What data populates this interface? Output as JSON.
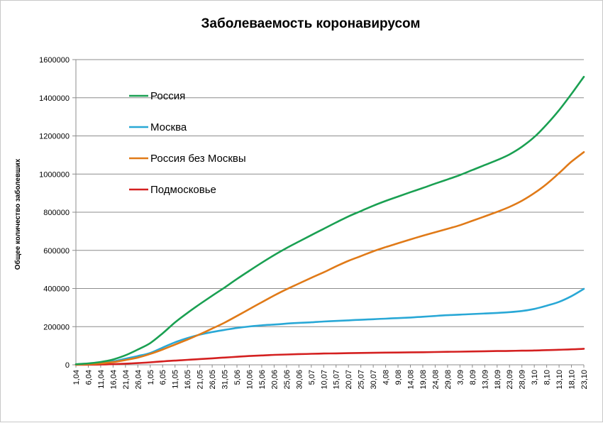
{
  "chart_data": {
    "type": "line",
    "title": "Заболеваемость коронавирусом",
    "xlabel": "",
    "ylabel": "Общее количество заболевших",
    "ylim": [
      0,
      1600000
    ],
    "yticks": [
      0,
      200000,
      400000,
      600000,
      800000,
      1000000,
      1200000,
      1400000,
      1600000
    ],
    "ytick_labels": [
      "0",
      "200000",
      "400000",
      "600000",
      "800000",
      "1000000",
      "1200000",
      "1400000",
      "1600000"
    ],
    "x_labels": [
      "1,04",
      "6,04",
      "11,04",
      "16,04",
      "21,04",
      "26,04",
      "1,05",
      "6,05",
      "11,05",
      "16,05",
      "21,05",
      "26,05",
      "31,05",
      "5,06",
      "10,06",
      "15,06",
      "20,06",
      "25,06",
      "30,06",
      "5,07",
      "10,07",
      "15,07",
      "20,07",
      "25,07",
      "30,07",
      "4,08",
      "9,08",
      "14,08",
      "19,08",
      "24,08",
      "29,08",
      "3,09",
      "8,09",
      "13,09",
      "18,09",
      "23,09",
      "28,09",
      "3,10",
      "8,10",
      "13,10",
      "18,10",
      "23,10"
    ],
    "grid": true,
    "legend_position": "top-left",
    "series": [
      {
        "name": "Россия",
        "color": "#1aa052",
        "values": [
          2800,
          7500,
          15000,
          28000,
          50000,
          80000,
          114000,
          165000,
          222000,
          272000,
          318000,
          362000,
          405000,
          450000,
          493000,
          535000,
          575000,
          612000,
          646000,
          680000,
          713000,
          746000,
          778000,
          806000,
          834000,
          859000,
          882000,
          905000,
          927000,
          950000,
          972000,
          995000,
          1021000,
          1047000,
          1073000,
          1103000,
          1143000,
          1194000,
          1260000,
          1335000,
          1420000,
          1510000
        ]
      },
      {
        "name": "Москва",
        "color": "#29a8d6",
        "values": [
          1000,
          4000,
          10000,
          18000,
          32000,
          46000,
          62000,
          90000,
          118000,
          140000,
          158000,
          172000,
          183000,
          193000,
          201000,
          207000,
          211000,
          216000,
          220000,
          223000,
          227000,
          230000,
          233000,
          236000,
          239000,
          242000,
          245000,
          248000,
          252000,
          256000,
          260000,
          263000,
          266000,
          269000,
          272000,
          276000,
          282000,
          293000,
          310000,
          330000,
          360000,
          398000
        ]
      },
      {
        "name": "Россия без Москвы",
        "color": "#e07a18",
        "values": [
          800,
          3000,
          7000,
          14000,
          25000,
          38000,
          57000,
          80000,
          106000,
          132000,
          160000,
          190000,
          221000,
          256000,
          292000,
          328000,
          363000,
          396000,
          426000,
          456000,
          485000,
          516000,
          545000,
          570000,
          595000,
          617000,
          637000,
          657000,
          677000,
          695000,
          713000,
          732000,
          755000,
          778000,
          802000,
          828000,
          860000,
          900000,
          948000,
          1005000,
          1065000,
          1115000
        ]
      },
      {
        "name": "Подмосковье",
        "color": "#d42020",
        "values": [
          200,
          600,
          1500,
          3500,
          6000,
          9000,
          13000,
          18000,
          22000,
          26000,
          30000,
          34000,
          38000,
          42000,
          46000,
          49000,
          52000,
          54000,
          56000,
          57500,
          59000,
          60000,
          61000,
          62000,
          63000,
          64000,
          64500,
          65500,
          66000,
          67000,
          68000,
          69000,
          70000,
          71000,
          72000,
          73000,
          74000,
          75000,
          77000,
          79000,
          81000,
          84000
        ]
      }
    ]
  }
}
